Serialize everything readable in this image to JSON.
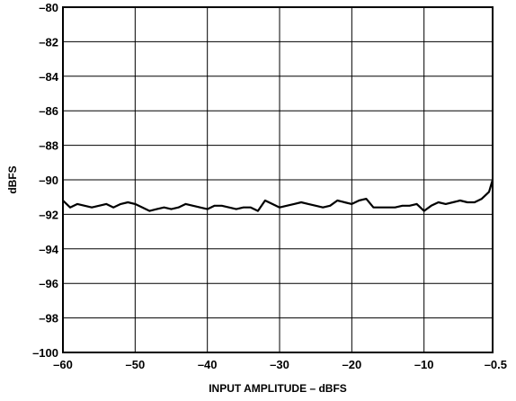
{
  "chart_data": {
    "type": "line",
    "title": "",
    "xlabel": "INPUT AMPLITUDE – dBFS",
    "ylabel": "dBFS",
    "xlim": [
      -60,
      -0.5
    ],
    "ylim": [
      -100,
      -80
    ],
    "grid": true,
    "x_ticks": [
      -60,
      -50,
      -40,
      -30,
      -20,
      -10,
      -0.5
    ],
    "x_tick_labels": [
      "–60",
      "–50",
      "–40",
      "–30",
      "–20",
      "–10",
      "–0.5"
    ],
    "y_ticks": [
      -80,
      -82,
      -84,
      -86,
      -88,
      -90,
      -92,
      -94,
      -96,
      -98,
      -100
    ],
    "y_tick_labels": [
      "–80",
      "–82",
      "–84",
      "–86",
      "–88",
      "–90",
      "–92",
      "–94",
      "–96",
      "–98",
      "–100"
    ],
    "line_color": "#000000",
    "series": [
      {
        "x": [
          -60,
          -59,
          -58,
          -57,
          -56,
          -55,
          -54,
          -53,
          -52,
          -51,
          -50,
          -49,
          -48,
          -47,
          -46,
          -45,
          -44,
          -43,
          -42,
          -41,
          -40,
          -39,
          -38,
          -37,
          -36,
          -35,
          -34,
          -33,
          -32,
          -31,
          -30,
          -29,
          -28,
          -27,
          -26,
          -25,
          -24,
          -23,
          -22,
          -21,
          -20,
          -19,
          -18,
          -17,
          -16,
          -15,
          -14,
          -13,
          -12,
          -11,
          -10,
          -9,
          -8,
          -7,
          -6,
          -5,
          -4,
          -3,
          -2,
          -1,
          -0.5
        ],
        "y": [
          -91.2,
          -91.6,
          -91.4,
          -91.5,
          -91.6,
          -91.5,
          -91.4,
          -91.6,
          -91.4,
          -91.3,
          -91.4,
          -91.6,
          -91.8,
          -91.7,
          -91.6,
          -91.7,
          -91.6,
          -91.4,
          -91.5,
          -91.6,
          -91.7,
          -91.5,
          -91.5,
          -91.6,
          -91.7,
          -91.6,
          -91.6,
          -91.8,
          -91.2,
          -91.4,
          -91.6,
          -91.5,
          -91.4,
          -91.3,
          -91.4,
          -91.5,
          -91.6,
          -91.5,
          -91.2,
          -91.3,
          -91.4,
          -91.2,
          -91.1,
          -91.6,
          -91.6,
          -91.6,
          -91.6,
          -91.5,
          -91.5,
          -91.4,
          -91.8,
          -91.5,
          -91.3,
          -91.4,
          -91.3,
          -91.2,
          -91.3,
          -91.3,
          -91.1,
          -90.7,
          -90.0
        ]
      }
    ]
  }
}
